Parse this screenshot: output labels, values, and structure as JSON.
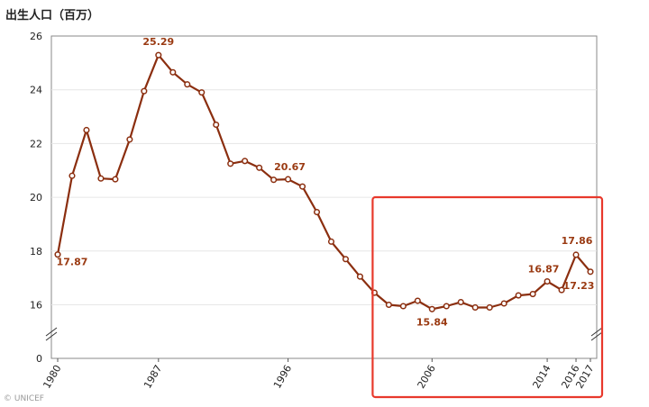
{
  "title": "出生人口（百万）",
  "credit": "© UNICEF",
  "colors": {
    "line": "#8b2e0f",
    "label": "#9a3a12",
    "highlight": "#e8392c",
    "grid": "#e6e6e6",
    "axis": "#333333"
  },
  "chart_data": {
    "type": "line",
    "title": "出生人口（百万）",
    "xlabel": "",
    "ylabel": "",
    "x": [
      1980,
      1981,
      1982,
      1983,
      1984,
      1985,
      1986,
      1987,
      1988,
      1989,
      1990,
      1991,
      1992,
      1993,
      1994,
      1995,
      1996,
      1997,
      1998,
      1999,
      2000,
      2001,
      2002,
      2003,
      2004,
      2005,
      2006,
      2007,
      2008,
      2009,
      2010,
      2011,
      2012,
      2013,
      2014,
      2015,
      2016,
      2017
    ],
    "series": [
      {
        "values": [
          17.87,
          20.8,
          22.5,
          20.7,
          20.67,
          22.15,
          23.95,
          25.29,
          24.65,
          24.2,
          23.9,
          22.7,
          21.25,
          21.35,
          21.1,
          20.65,
          20.67,
          20.4,
          19.45,
          18.35,
          17.7,
          17.05,
          16.45,
          16.0,
          15.95,
          16.15,
          15.84,
          15.95,
          16.1,
          15.9,
          15.9,
          16.05,
          16.35,
          16.4,
          16.87,
          16.55,
          17.86,
          17.23
        ]
      }
    ],
    "yticks": [
      0,
      16,
      18,
      20,
      22,
      24,
      26
    ],
    "xticks": [
      "1980",
      "1987",
      "1996",
      "2006",
      "2014",
      "2016",
      "2017"
    ],
    "ylim": [
      0,
      26
    ],
    "axis_break": true,
    "grid": true,
    "data_labels": [
      {
        "x": 1980,
        "text": "17.87"
      },
      {
        "x": 1987,
        "text": "25.29"
      },
      {
        "x": 1996,
        "text": "20.67"
      },
      {
        "x": 2006,
        "text": "15.84"
      },
      {
        "x": 2014,
        "text": "16.87"
      },
      {
        "x": 2016,
        "text": "17.86"
      },
      {
        "x": 2017,
        "text": "17.23"
      }
    ],
    "highlight_range": [
      2002,
      2017
    ]
  }
}
